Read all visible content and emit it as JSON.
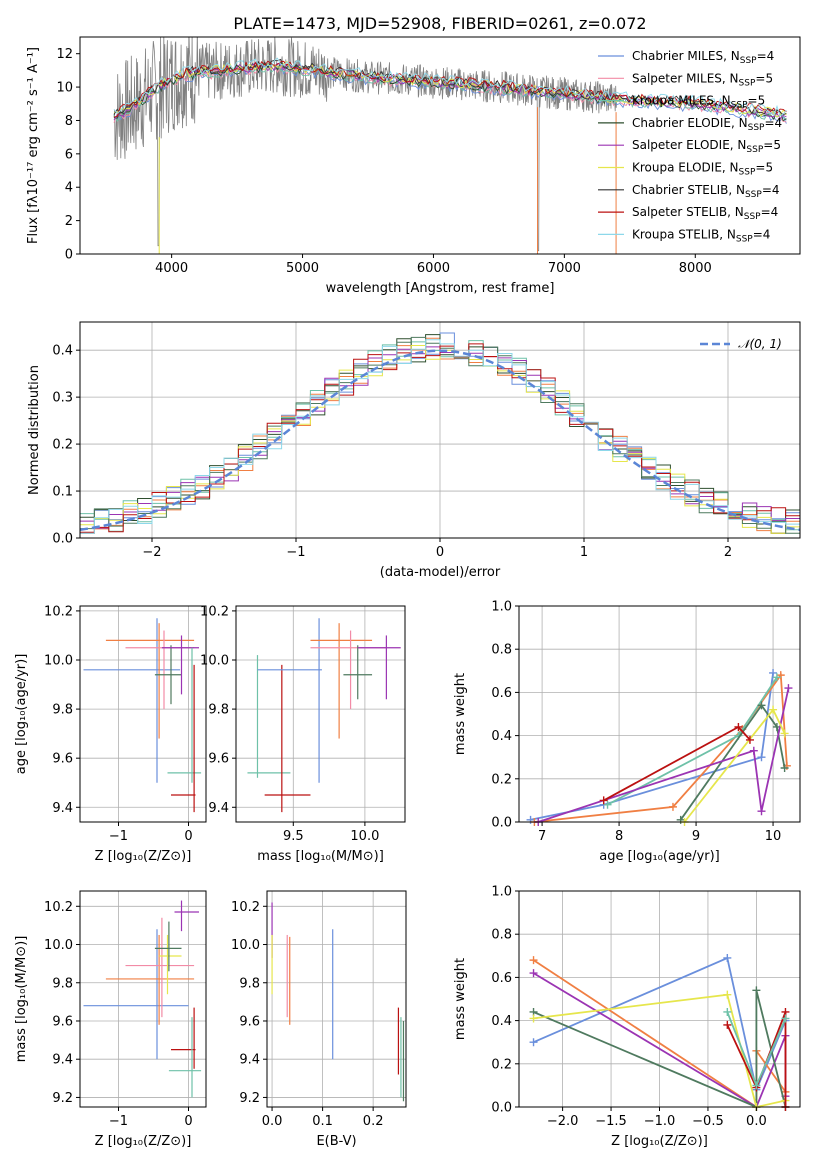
{
  "chart_data": [
    {
      "type": "line",
      "title": "PLATE=1473, MJD=52908, FIBERID=0261, z=0.072",
      "xlabel": "wavelength [Angstrom, rest frame]",
      "ylabel": "Flux [fλ10⁻¹⁷ erg cm⁻² s⁻¹ A⁻¹]",
      "xlim": [
        3300,
        8800
      ],
      "ylim": [
        0,
        13
      ],
      "xticks": [
        "4000",
        "5000",
        "6000",
        "7000",
        "8000"
      ],
      "xtick_values": [
        4000,
        5000,
        6000,
        7000,
        8000
      ],
      "yticks": [
        "0",
        "2",
        "4",
        "6",
        "8",
        "10",
        "12"
      ],
      "ytick_values": [
        0,
        2,
        4,
        6,
        8,
        10,
        12
      ],
      "legend_position": "upper-right",
      "series": [
        {
          "name": "Chabrier MILES, N_SSP=4",
          "color": "#6a8fdc"
        },
        {
          "name": "Salpeter MILES, N_SSP=5",
          "color": "#f28ba6"
        },
        {
          "name": "Kroupa MILES, N_SSP=5",
          "color": "#6ec1a8"
        },
        {
          "name": "Chabrier ELODIE, N_SSP=4",
          "color": "#2f4f2f"
        },
        {
          "name": "Salpeter ELODIE, N_SSP=5",
          "color": "#9b34b3"
        },
        {
          "name": "Kroupa ELODIE, N_SSP=5",
          "color": "#e6e64c"
        },
        {
          "name": "Chabrier STELIB, N_SSP=4",
          "color": "#333333"
        },
        {
          "name": "Salpeter STELIB, N_SSP=4",
          "color": "#bb1111"
        },
        {
          "name": "Kroupa STELIB, N_SSP=4",
          "color": "#8dd8ea"
        }
      ],
      "data_color": "#808080",
      "continuum": [
        [
          3550,
          8.2
        ],
        [
          3700,
          8.8
        ],
        [
          3900,
          10.0
        ],
        [
          4100,
          10.8
        ],
        [
          4300,
          10.9
        ],
        [
          4500,
          11.1
        ],
        [
          4800,
          11.3
        ],
        [
          5100,
          11.0
        ],
        [
          5500,
          10.6
        ],
        [
          6000,
          10.3
        ],
        [
          6500,
          10.0
        ],
        [
          7000,
          9.6
        ],
        [
          7500,
          9.2
        ],
        [
          8000,
          9.0
        ],
        [
          8500,
          8.5
        ],
        [
          8700,
          8.3
        ]
      ]
    },
    {
      "type": "line",
      "xlabel": "(data-model)/error",
      "ylabel": "Normed distribution",
      "xlim": [
        -2.5,
        2.5
      ],
      "ylim": [
        0,
        0.46
      ],
      "xticks": [
        "−2",
        "−1",
        "0",
        "1",
        "2"
      ],
      "xtick_values": [
        -2,
        -1,
        0,
        1,
        2
      ],
      "yticks": [
        "0.0",
        "0.1",
        "0.2",
        "0.3",
        "0.4"
      ],
      "ytick_values": [
        0,
        0.1,
        0.2,
        0.3,
        0.4
      ],
      "legend": "𝒩(0, 1)",
      "legend_position": "upper-right",
      "normal_color": "#5b86d6",
      "hist_colors": [
        "#6a8fdc",
        "#f07f43",
        "#6ec1a8",
        "#2f4f2f",
        "#9b34b3",
        "#e6e64c",
        "#4f7a5f",
        "#bb1111",
        "#8dd8ea"
      ]
    },
    {
      "type": "scatter",
      "xlabel": "Z [log₁₀(Z/Z⊙)]",
      "ylabel": "age  [log₁₀(age/yr)]",
      "xlim": [
        -1.55,
        0.25
      ],
      "ylim": [
        9.34,
        10.22
      ],
      "xticks": [
        "−1",
        "0"
      ],
      "xtick_values": [
        -1,
        0
      ],
      "yticks": [
        "9.4",
        "9.6",
        "9.8",
        "10.0",
        "10.2"
      ],
      "ytick_values": [
        9.4,
        9.6,
        9.8,
        10.0,
        10.2
      ],
      "errorbars": [
        {
          "x": -0.45,
          "y": 9.96,
          "xe": [
            -1.5,
            -0.12
          ],
          "ye": [
            9.5,
            10.17
          ],
          "color": "#6a8fdc"
        },
        {
          "x": -0.42,
          "y": 10.08,
          "xe": [
            -1.18,
            0.08
          ],
          "ye": [
            9.68,
            10.15
          ],
          "color": "#f07f43"
        },
        {
          "x": -0.35,
          "y": 10.05,
          "xe": [
            -0.9,
            0.08
          ],
          "ye": [
            9.8,
            10.12
          ],
          "color": "#f28ba6"
        },
        {
          "x": -0.25,
          "y": 9.94,
          "xe": [
            -0.48,
            -0.1
          ],
          "ye": [
            9.82,
            10.06
          ],
          "color": "#4f7a5f"
        },
        {
          "x": -0.1,
          "y": 10.05,
          "xe": [
            -0.38,
            0.15
          ],
          "ye": [
            9.86,
            10.1
          ],
          "color": "#9b34b3"
        },
        {
          "x": 0.05,
          "y": 9.54,
          "xe": [
            -0.3,
            0.18
          ],
          "ye": [
            9.5,
            10.05
          ],
          "color": "#6ec1a8"
        },
        {
          "x": 0.08,
          "y": 9.45,
          "xe": [
            -0.25,
            0.1
          ],
          "ye": [
            9.38,
            9.98
          ],
          "color": "#bb1111"
        }
      ]
    },
    {
      "type": "scatter",
      "xlabel": "mass [log₁₀(M/M⊙)]",
      "xlim": [
        9.1,
        10.28
      ],
      "ylim": [
        9.34,
        10.22
      ],
      "xticks": [
        "9.5",
        "10.0"
      ],
      "xtick_values": [
        9.5,
        10.0
      ],
      "yticks": [
        "9.4",
        "9.6",
        "9.8",
        "10.0",
        "10.2"
      ],
      "ytick_values": [
        9.4,
        9.6,
        9.8,
        10.0,
        10.2
      ],
      "errorbars": [
        {
          "x": 9.25,
          "y": 9.54,
          "xe": [
            9.18,
            9.48
          ],
          "ye": [
            9.52,
            10.02
          ],
          "color": "#6ec1a8"
        },
        {
          "x": 9.42,
          "y": 9.45,
          "xe": [
            9.3,
            9.62
          ],
          "ye": [
            9.38,
            9.98
          ],
          "color": "#bb1111"
        },
        {
          "x": 9.68,
          "y": 9.96,
          "xe": [
            9.25,
            9.7
          ],
          "ye": [
            9.5,
            10.17
          ],
          "color": "#6a8fdc"
        },
        {
          "x": 9.82,
          "y": 10.08,
          "xe": [
            9.62,
            10.05
          ],
          "ye": [
            9.68,
            10.15
          ],
          "color": "#f07f43"
        },
        {
          "x": 9.9,
          "y": 10.05,
          "xe": [
            9.62,
            10.15
          ],
          "ye": [
            9.8,
            10.12
          ],
          "color": "#f28ba6"
        },
        {
          "x": 9.95,
          "y": 9.94,
          "xe": [
            9.85,
            10.05
          ],
          "ye": [
            9.84,
            10.06
          ],
          "color": "#4f7a5f"
        },
        {
          "x": 10.15,
          "y": 10.05,
          "xe": [
            9.95,
            10.25
          ],
          "ye": [
            9.84,
            10.1
          ],
          "color": "#9b34b3"
        }
      ]
    },
    {
      "type": "line",
      "xlabel": "age  [log₁₀(age/yr)]",
      "ylabel": "mass weight",
      "xlim": [
        6.7,
        10.35
      ],
      "ylim": [
        0,
        1.0
      ],
      "xticks": [
        "7",
        "8",
        "9",
        "10"
      ],
      "xtick_values": [
        7,
        8,
        9,
        10
      ],
      "yticks": [
        "0.0",
        "0.2",
        "0.4",
        "0.6",
        "0.8",
        "1.0"
      ],
      "ytick_values": [
        0,
        0.2,
        0.4,
        0.6,
        0.8,
        1.0
      ],
      "series": [
        {
          "color": "#6a8fdc",
          "x": [
            6.85,
            7.8,
            9.85,
            10.0
          ],
          "y": [
            0.01,
            0.08,
            0.3,
            0.69
          ]
        },
        {
          "color": "#f07f43",
          "x": [
            6.9,
            8.7,
            9.6,
            10.1,
            10.18
          ],
          "y": [
            0.0,
            0.07,
            0.43,
            0.68,
            0.26
          ]
        },
        {
          "color": "#6ec1a8",
          "x": [
            7.85,
            9.55,
            10.05
          ],
          "y": [
            0.08,
            0.4,
            0.67
          ]
        },
        {
          "color": "#4f7a5f",
          "x": [
            8.8,
            9.85,
            10.05,
            10.15
          ],
          "y": [
            0.01,
            0.54,
            0.44,
            0.25
          ]
        },
        {
          "color": "#9b34b3",
          "x": [
            6.95,
            9.75,
            9.85,
            10.2
          ],
          "y": [
            0.0,
            0.33,
            0.05,
            0.62
          ]
        },
        {
          "color": "#e6e64c",
          "x": [
            8.85,
            10.0,
            10.15
          ],
          "y": [
            0.0,
            0.52,
            0.41
          ]
        },
        {
          "color": "#bb1111",
          "x": [
            7.8,
            9.55,
            9.7
          ],
          "y": [
            0.1,
            0.44,
            0.38
          ]
        }
      ]
    },
    {
      "type": "scatter",
      "xlabel": "Z [log₁₀(Z/Z⊙)]",
      "ylabel": "mass [log₁₀(M/M⊙)]",
      "xlim": [
        -1.55,
        0.25
      ],
      "ylim": [
        9.15,
        10.28
      ],
      "xticks": [
        "−1",
        "0"
      ],
      "xtick_values": [
        -1,
        0
      ],
      "yticks": [
        "9.2",
        "9.4",
        "9.6",
        "9.8",
        "10.0",
        "10.2"
      ],
      "ytick_values": [
        9.2,
        9.4,
        9.6,
        9.8,
        10.0,
        10.2
      ],
      "errorbars": [
        {
          "x": -0.45,
          "y": 9.68,
          "xe": [
            -1.5,
            -0.0
          ],
          "ye": [
            9.4,
            10.08
          ],
          "color": "#6a8fdc"
        },
        {
          "x": -0.42,
          "y": 9.82,
          "xe": [
            -1.18,
            0.08
          ],
          "ye": [
            9.58,
            10.05
          ],
          "color": "#f07f43"
        },
        {
          "x": -0.38,
          "y": 9.89,
          "xe": [
            -0.9,
            0.08
          ],
          "ye": [
            9.62,
            10.14
          ],
          "color": "#f28ba6"
        },
        {
          "x": -0.3,
          "y": 9.94,
          "xe": [
            -0.42,
            -0.1
          ],
          "ye": [
            9.74,
            10.05
          ],
          "color": "#e6e64c"
        },
        {
          "x": -0.28,
          "y": 9.98,
          "xe": [
            -0.48,
            -0.1
          ],
          "ye": [
            9.86,
            10.12
          ],
          "color": "#4f7a5f"
        },
        {
          "x": -0.1,
          "y": 10.17,
          "xe": [
            -0.2,
            0.15
          ],
          "ye": [
            10.07,
            10.23
          ],
          "color": "#9b34b3"
        },
        {
          "x": 0.08,
          "y": 9.45,
          "xe": [
            -0.25,
            0.1
          ],
          "ye": [
            9.35,
            9.67
          ],
          "color": "#bb1111"
        },
        {
          "x": 0.05,
          "y": 9.34,
          "xe": [
            -0.28,
            0.18
          ],
          "ye": [
            9.2,
            9.62
          ],
          "color": "#6ec1a8"
        }
      ]
    },
    {
      "type": "scatter",
      "xlabel": "E(B-V)",
      "xlim": [
        -0.01,
        0.265
      ],
      "ylim": [
        9.15,
        10.28
      ],
      "xticks": [
        "0.0",
        "0.1",
        "0.2"
      ],
      "xtick_values": [
        0,
        0.1,
        0.2
      ],
      "yticks": [
        "9.2",
        "9.4",
        "9.6",
        "9.8",
        "10.0",
        "10.2"
      ],
      "ytick_values": [
        9.2,
        9.4,
        9.6,
        9.8,
        10.0,
        10.2
      ],
      "errorbars": [
        {
          "x": 0.0,
          "y": 10.1,
          "xe": [
            0,
            0
          ],
          "ye": [
            9.93,
            10.22
          ],
          "color": "#9b34b3"
        },
        {
          "x": 0.0,
          "y": 9.9,
          "xe": [
            0,
            0
          ],
          "ye": [
            9.74,
            10.05
          ],
          "color": "#e6e64c"
        },
        {
          "x": 0.03,
          "y": 9.86,
          "xe": [
            0,
            0
          ],
          "ye": [
            9.62,
            10.05
          ],
          "color": "#f28ba6"
        },
        {
          "x": 0.035,
          "y": 9.82,
          "xe": [
            0,
            0
          ],
          "ye": [
            9.58,
            10.04
          ],
          "color": "#f07f43"
        },
        {
          "x": 0.12,
          "y": 9.68,
          "xe": [
            0,
            0
          ],
          "ye": [
            9.4,
            10.08
          ],
          "color": "#6a8fdc"
        },
        {
          "x": 0.25,
          "y": 9.45,
          "xe": [
            0,
            0
          ],
          "ye": [
            9.32,
            9.67
          ],
          "color": "#bb1111"
        },
        {
          "x": 0.255,
          "y": 9.34,
          "xe": [
            0,
            0
          ],
          "ye": [
            9.2,
            9.62
          ],
          "color": "#6ec1a8"
        },
        {
          "x": 0.26,
          "y": 9.4,
          "xe": [
            0,
            0
          ],
          "ye": [
            9.18,
            9.6
          ],
          "color": "#4f7a5f"
        }
      ]
    },
    {
      "type": "line",
      "xlabel": "Z [log₁₀(Z/Z⊙)]",
      "ylabel": "mass weight",
      "xlim": [
        -2.45,
        0.45
      ],
      "ylim": [
        0,
        1.0
      ],
      "xticks": [
        "−2.0",
        "−1.5",
        "−1.0",
        "−0.5",
        "0.0"
      ],
      "xtick_values": [
        -2,
        -1.5,
        -1,
        -0.5,
        0
      ],
      "yticks": [
        "0.0",
        "0.2",
        "0.4",
        "0.6",
        "0.8",
        "1.0"
      ],
      "ytick_values": [
        0,
        0.2,
        0.4,
        0.6,
        0.8,
        1.0
      ],
      "series": [
        {
          "color": "#6a8fdc",
          "x": [
            -2.3,
            -0.3,
            0.0,
            0.3
          ],
          "y": [
            0.3,
            0.69,
            0.08,
            0.4
          ]
        },
        {
          "color": "#f07f43",
          "x": [
            -2.3,
            0.0,
            0.0,
            0.3
          ],
          "y": [
            0.68,
            0.0,
            0.26,
            0.07
          ]
        },
        {
          "color": "#9b34b3",
          "x": [
            -2.3,
            0.0,
            0.3,
            0.3
          ],
          "y": [
            0.62,
            0.0,
            0.33,
            0.05
          ]
        },
        {
          "color": "#4f7a5f",
          "x": [
            -2.3,
            0.0,
            0.0,
            0.3
          ],
          "y": [
            0.44,
            0.0,
            0.54,
            0.0
          ]
        },
        {
          "color": "#e6e64c",
          "x": [
            -2.3,
            -0.3,
            0.0,
            0.3
          ],
          "y": [
            0.41,
            0.52,
            0.0,
            0.03
          ]
        },
        {
          "color": "#bb1111",
          "x": [
            -0.3,
            0.0,
            0.3,
            0.3
          ],
          "y": [
            0.38,
            0.09,
            0.44,
            0.0
          ]
        },
        {
          "color": "#6ec1a8",
          "x": [
            -0.3,
            0.0,
            0.3
          ],
          "y": [
            0.44,
            0.1,
            0.41
          ]
        }
      ]
    }
  ]
}
